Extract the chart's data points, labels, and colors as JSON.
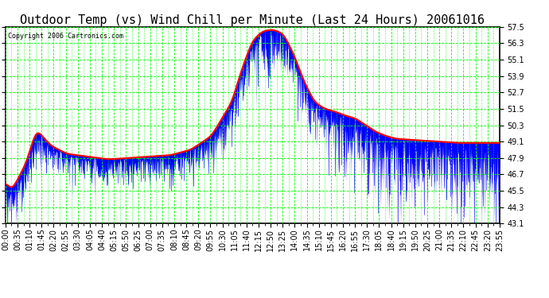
{
  "title": "Outdoor Temp (vs) Wind Chill per Minute (Last 24 Hours) 20061016",
  "copyright": "Copyright 2006 Cartronics.com",
  "y_ticks": [
    43.1,
    44.3,
    45.5,
    46.7,
    47.9,
    49.1,
    50.3,
    51.5,
    52.7,
    53.9,
    55.1,
    56.3,
    57.5
  ],
  "y_min": 43.1,
  "y_max": 57.5,
  "x_labels": [
    "00:00",
    "00:35",
    "01:10",
    "01:45",
    "02:20",
    "02:55",
    "03:30",
    "04:05",
    "04:40",
    "05:15",
    "05:50",
    "06:25",
    "07:00",
    "07:35",
    "08:10",
    "08:45",
    "09:20",
    "09:55",
    "10:30",
    "11:05",
    "11:40",
    "12:15",
    "12:50",
    "13:25",
    "14:00",
    "14:35",
    "15:10",
    "15:45",
    "16:20",
    "16:55",
    "17:30",
    "18:05",
    "18:40",
    "19:15",
    "19:50",
    "20:25",
    "21:00",
    "21:35",
    "22:10",
    "22:45",
    "23:20",
    "23:55"
  ],
  "background_color": "#ffffff",
  "grid_color": "#00ff00",
  "line_color_red": "#ff0000",
  "bar_color_blue": "#0000ff",
  "title_fontsize": 11,
  "copyright_fontsize": 6,
  "tick_fontsize": 7,
  "red_curve_keypoints_t": [
    0,
    0.3,
    1.0,
    1.5,
    2.2,
    3.0,
    4.0,
    5.0,
    6.0,
    7.0,
    8.0,
    9.0,
    10.0,
    11.0,
    11.5,
    12.0,
    12.5,
    13.0,
    13.5,
    14.0,
    14.5,
    15.0,
    15.5,
    16.0,
    16.5,
    17.0,
    17.5,
    18.0,
    18.5,
    19.0,
    20.0,
    21.0,
    22.0,
    23.0,
    24.0
  ],
  "red_curve_keypoints_v": [
    46.2,
    45.5,
    47.5,
    50.0,
    48.8,
    48.2,
    48.0,
    47.8,
    47.9,
    48.0,
    48.1,
    48.5,
    49.5,
    52.0,
    54.5,
    56.5,
    57.2,
    57.3,
    57.0,
    55.5,
    53.5,
    52.0,
    51.5,
    51.3,
    51.0,
    50.8,
    50.3,
    49.8,
    49.5,
    49.3,
    49.2,
    49.1,
    49.0,
    49.0,
    49.0
  ]
}
